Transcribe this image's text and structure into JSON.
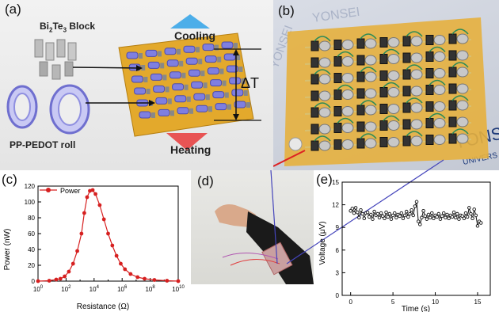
{
  "panels": {
    "a": {
      "label": "(a)",
      "block_label_main": "Bi",
      "block_label_sub1": "2",
      "block_label_mid": "Te",
      "block_label_sub2": "3",
      "block_label_end": " Block",
      "roll_label": "PP-PEDOT roll",
      "cooling_label": "Cooling",
      "heating_label": "Heating",
      "delta_label": "ΔT"
    },
    "b": {
      "label": "(b)",
      "watermark_1": "YONSEI",
      "watermark_2": "YONSEI",
      "watermark_3": "YONS",
      "watermark_4": "UNIVERS"
    },
    "d": {
      "label": "(d)"
    },
    "c": {
      "label": "(c)"
    },
    "e": {
      "label": "(e)"
    }
  },
  "colors": {
    "substrate": "#e3a92c",
    "pedot": "#7f7fe0",
    "power_line": "#d62020",
    "voltage_line": "#111111",
    "cooling_arrow": "#3aa6e8",
    "heating_arrow": "#e83a3a"
  },
  "chart_data": [
    {
      "id": "c",
      "type": "line",
      "xlabel": "Resistance (Ω)",
      "ylabel": "Power (nW)",
      "xscale": "log",
      "xlim_exp": [
        0,
        10
      ],
      "ylim": [
        0,
        120
      ],
      "yticks": [
        0,
        20,
        40,
        60,
        80,
        100,
        120
      ],
      "xtick_base": "10",
      "xtick_exponents": [
        "0",
        "2",
        "4",
        "6",
        "8",
        "10"
      ],
      "xtick_minor_exponents": [
        1,
        3,
        5,
        7,
        9
      ],
      "legend_position": "top-left",
      "series": [
        {
          "name": "Power",
          "x_exp": [
            0.0,
            0.8,
            1.3,
            1.6,
            1.9,
            2.2,
            2.5,
            2.8,
            3.1,
            3.3,
            3.5,
            3.7,
            3.9,
            4.1,
            4.4,
            4.7,
            5.0,
            5.3,
            5.6,
            5.9,
            6.2,
            6.6,
            7.1,
            7.6,
            8.3,
            9.2,
            10.0
          ],
          "y": [
            0,
            0.5,
            2,
            3,
            6,
            12,
            22,
            38,
            60,
            86,
            106,
            114,
            115,
            110,
            96,
            78,
            60,
            45,
            32,
            22,
            15,
            9,
            5,
            3,
            1.5,
            0.5,
            0
          ]
        }
      ]
    },
    {
      "id": "e",
      "type": "line",
      "xlabel": "Time (s)",
      "ylabel": "Voltage (μV)",
      "xlim": [
        -1,
        16.5
      ],
      "ylim": [
        0,
        15
      ],
      "xticks": [
        0,
        5,
        10,
        15
      ],
      "yticks": [
        0,
        3,
        6,
        9,
        12,
        15
      ],
      "series": [
        {
          "name": "",
          "x": [
            0.0,
            0.2,
            0.4,
            0.6,
            0.8,
            1.0,
            1.2,
            1.4,
            1.6,
            1.8,
            2.0,
            2.2,
            2.4,
            2.6,
            2.8,
            3.0,
            3.2,
            3.4,
            3.6,
            3.8,
            4.0,
            4.2,
            4.4,
            4.6,
            4.8,
            5.0,
            5.2,
            5.4,
            5.6,
            5.8,
            6.0,
            6.2,
            6.4,
            6.6,
            6.8,
            7.0,
            7.2,
            7.4,
            7.6,
            7.8,
            8.0,
            8.2,
            8.4,
            8.6,
            8.8,
            9.0,
            9.2,
            9.4,
            9.6,
            9.8,
            10.0,
            10.2,
            10.4,
            10.6,
            10.8,
            11.0,
            11.2,
            11.4,
            11.6,
            11.8,
            12.0,
            12.2,
            12.4,
            12.6,
            12.8,
            13.0,
            13.2,
            13.4,
            13.6,
            13.8,
            14.0,
            14.2,
            14.4,
            14.6,
            14.8,
            15.0,
            15.2,
            15.4
          ],
          "y": [
            11.2,
            11.5,
            10.9,
            11.6,
            11.0,
            10.3,
            11.3,
            10.8,
            10.2,
            10.9,
            11.0,
            10.4,
            10.7,
            10.1,
            11.1,
            10.6,
            10.8,
            10.3,
            10.9,
            10.5,
            10.2,
            11.0,
            10.4,
            10.8,
            10.1,
            10.6,
            10.9,
            10.3,
            10.7,
            10.5,
            10.9,
            10.2,
            10.6,
            11.1,
            10.4,
            10.8,
            11.3,
            10.6,
            11.8,
            12.4,
            9.8,
            9.4,
            10.3,
            11.2,
            10.5,
            10.1,
            10.7,
            10.3,
            10.9,
            10.2,
            10.6,
            10.4,
            10.8,
            10.1,
            10.5,
            10.9,
            10.3,
            10.7,
            10.2,
            10.6,
            10.4,
            11.0,
            10.3,
            10.8,
            10.1,
            10.6,
            10.5,
            10.2,
            10.9,
            10.4,
            11.6,
            10.8,
            10.2,
            11.4,
            10.6,
            9.2,
            9.8,
            9.6
          ]
        }
      ]
    }
  ]
}
